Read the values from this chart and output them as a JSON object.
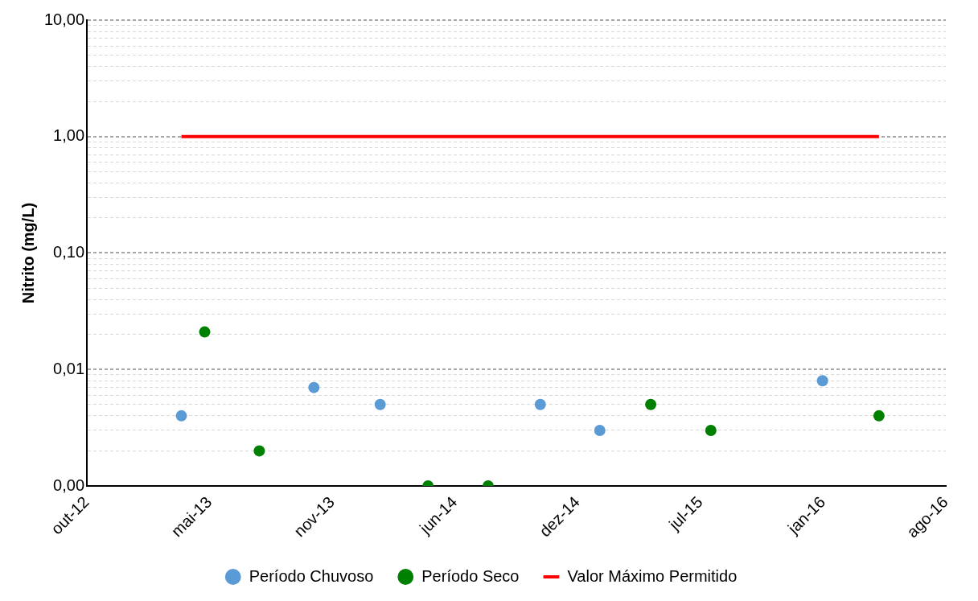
{
  "chart_data": {
    "type": "scatter",
    "ylabel": "Nitrito (mg/L)",
    "log": "y",
    "grid": "y",
    "legend": "bottom",
    "marker": "circle",
    "xlim": [
      "2012-10-18",
      "2016-08-18"
    ],
    "xticks": [
      {
        "value": "2012-10-18",
        "label": "out-12"
      },
      {
        "value": "2013-05-06",
        "label": "mai-13"
      },
      {
        "value": "2013-11-22",
        "label": "nov-13"
      },
      {
        "value": "2014-06-10",
        "label": "jun-14"
      },
      {
        "value": "2014-12-27",
        "label": "dez-14"
      },
      {
        "value": "2015-07-15",
        "label": "jul-15"
      },
      {
        "value": "2016-01-31",
        "label": "jan-16"
      },
      {
        "value": "2016-08-18",
        "label": "ago-16"
      }
    ],
    "ylim": [
      0.001,
      10
    ],
    "yticks": [
      {
        "value": 0.001,
        "label": "0,00"
      },
      {
        "value": 0.002,
        "label": null
      },
      {
        "value": 0.003,
        "label": null
      },
      {
        "value": 0.004,
        "label": null
      },
      {
        "value": 0.005,
        "label": null
      },
      {
        "value": 0.006,
        "label": null
      },
      {
        "value": 0.007,
        "label": null
      },
      {
        "value": 0.008,
        "label": null
      },
      {
        "value": 0.009,
        "label": null
      },
      {
        "value": 0.01,
        "label": "0,01"
      },
      {
        "value": 0.02,
        "label": null
      },
      {
        "value": 0.03,
        "label": null
      },
      {
        "value": 0.04,
        "label": null
      },
      {
        "value": 0.05,
        "label": null
      },
      {
        "value": 0.06,
        "label": null
      },
      {
        "value": 0.07,
        "label": null
      },
      {
        "value": 0.08,
        "label": null
      },
      {
        "value": 0.09,
        "label": null
      },
      {
        "value": 0.1,
        "label": "0,10"
      },
      {
        "value": 0.2,
        "label": null
      },
      {
        "value": 0.3,
        "label": null
      },
      {
        "value": 0.4,
        "label": null
      },
      {
        "value": 0.5,
        "label": null
      },
      {
        "value": 0.6,
        "label": null
      },
      {
        "value": 0.7,
        "label": null
      },
      {
        "value": 0.8,
        "label": null
      },
      {
        "value": 0.9,
        "label": null
      },
      {
        "value": 1,
        "label": "1,00"
      },
      {
        "value": 2,
        "label": null
      },
      {
        "value": 3,
        "label": null
      },
      {
        "value": 4,
        "label": null
      },
      {
        "value": 5,
        "label": null
      },
      {
        "value": 6,
        "label": null
      },
      {
        "value": 7,
        "label": null
      },
      {
        "value": 8,
        "label": null
      },
      {
        "value": 9,
        "label": null
      },
      {
        "value": 10,
        "label": "10,00"
      }
    ],
    "series": [
      {
        "name": "Período Chuvoso",
        "color": "#5b9bd5",
        "x": [
          "2013-03-21",
          "2013-10-23",
          "2014-02-08",
          "2014-10-27",
          "2015-02-01",
          "2016-01-30"
        ],
        "values": [
          0.004,
          0.007,
          0.005,
          0.005,
          0.003,
          0.008
        ]
      },
      {
        "name": "Período Seco",
        "color": "#008000",
        "x": [
          "2013-04-28",
          "2013-07-26",
          "2014-04-27",
          "2014-08-03",
          "2015-04-25",
          "2015-08-01",
          "2016-05-01"
        ],
        "values": [
          0.021,
          0.002,
          0.001,
          0.001,
          0.005,
          0.003,
          0.004
        ]
      },
      {
        "name": "Valor Máximo Permitido",
        "type": "line",
        "color": "#ff0000",
        "marker": "none",
        "x": [
          "2013-03-21",
          "2016-05-01"
        ],
        "values": [
          1,
          1
        ]
      }
    ]
  }
}
